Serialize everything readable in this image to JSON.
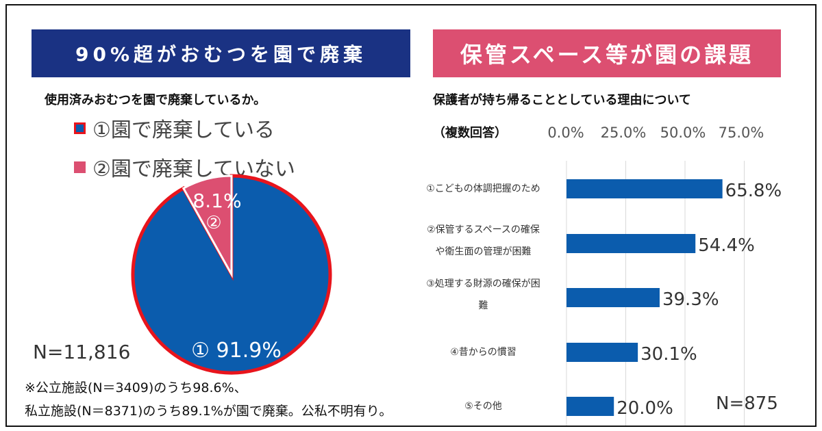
{
  "left": {
    "banner": "90%超がおむつを園で廃棄",
    "question": "使用済みおむつを園で廃棄しているか。",
    "legend": [
      "①園で廃棄している",
      "②園で廃棄していない"
    ],
    "n": "N=11,816",
    "note_line1": "※公立施設(N＝3409)のうち98.6%、",
    "note_line2": "私立施設(N＝8371)のうち89.1%が園で廃棄。公私不明有り。"
  },
  "right": {
    "banner": "保管スペース等が園の課題",
    "question": "保護者が持ち帰ることとしている理由について",
    "multiple": "（複数回答）",
    "n": "N=875"
  },
  "colors": {
    "navy": "#1a3283",
    "blue": "#0b5cad",
    "pink": "#dc4f71",
    "red": "#e8141c"
  },
  "chart_data": [
    {
      "type": "pie",
      "labels": [
        "①",
        "②"
      ],
      "values": [
        91.9,
        8.1
      ],
      "data_labels": [
        "① 91.9%",
        "8.1%"
      ],
      "legend": [
        "①園で廃棄している",
        "②園で廃棄していない"
      ],
      "legend_position": "top-left"
    },
    {
      "type": "bar",
      "orientation": "horizontal",
      "categories": [
        "①こどもの体調把握のため",
        "②保管するスペースの確保や衛生面の管理が困難",
        "③処理する財源の確保が困難",
        "④昔からの慣習",
        "⑤その他"
      ],
      "category_lines": [
        [
          "①こどもの体調把握のため"
        ],
        [
          "②保管するスペースの確保",
          "や衛生面の管理が困難"
        ],
        [
          "③処理する財源の確保が困",
          "難"
        ],
        [
          "④昔からの慣習"
        ],
        [
          "⑤その他"
        ]
      ],
      "values": [
        65.8,
        54.4,
        39.3,
        30.1,
        20.0
      ],
      "data_labels": [
        "65.8%",
        "54.4%",
        "39.3%",
        "30.1%",
        "20.0%"
      ],
      "x_ticks": [
        "0.0%",
        "25.0%",
        "50.0%",
        "75.0%"
      ],
      "xlim": [
        0,
        75
      ],
      "grid": true,
      "axis_position": "top"
    }
  ]
}
